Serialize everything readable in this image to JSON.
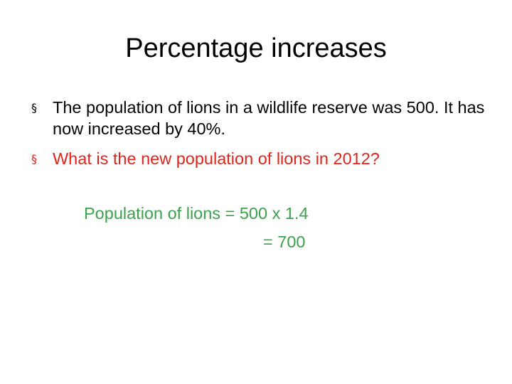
{
  "title": "Percentage increases",
  "bullets": [
    {
      "marker": "§",
      "text": "The population of lions in a wildlife reserve was 500. It has now increased by 40%.",
      "color": "#000000"
    },
    {
      "marker": "§",
      "text": "What is the new population of lions in 2012?",
      "color": "#e0241b"
    }
  ],
  "answer": {
    "line1": "Population of lions = 500 x 1.4",
    "line2": "= 700",
    "color": "#3aa24a"
  }
}
